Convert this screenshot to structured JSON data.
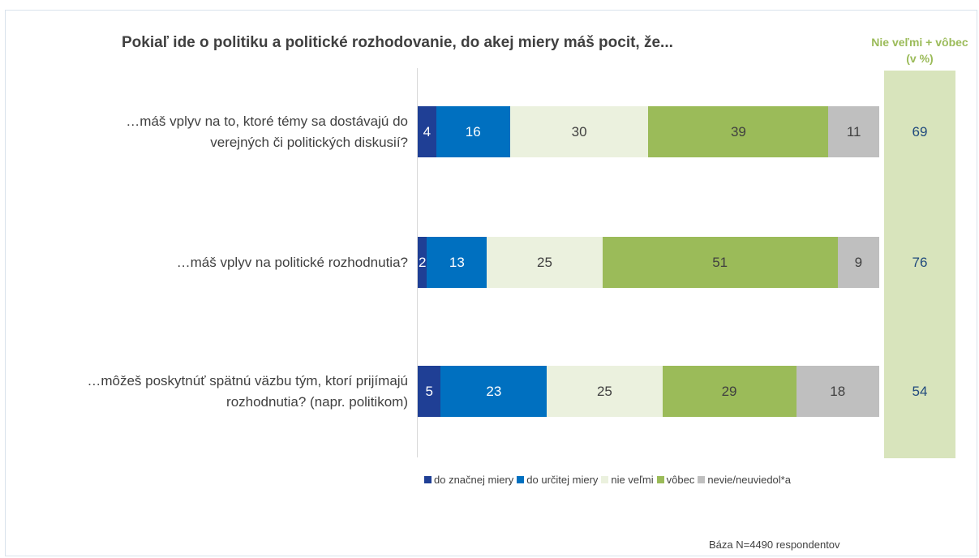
{
  "chart_data": {
    "type": "bar",
    "orientation": "horizontal",
    "stacked": true,
    "title": "Pokiaľ ide o politiku a politické rozhodovanie, do akej miery máš pocit, že...",
    "categories": [
      "…máš vplyv na to, ktoré témy sa dostávajú do verejných či politických diskusií?",
      "…máš vplyv na politické rozhodnutia?",
      "…môžeš poskytnúť spätnú väzbu tým, ktorí prijímajú rozhodnutia? (napr. politikom)"
    ],
    "series": [
      {
        "name": "do značnej miery",
        "values": [
          4,
          2,
          5
        ],
        "color": "#1f3f95",
        "text_color": "#ffffff"
      },
      {
        "name": "do určitej miery",
        "values": [
          16,
          13,
          23
        ],
        "color": "#0070c0",
        "text_color": "#ffffff"
      },
      {
        "name": "nie veľmi",
        "values": [
          30,
          25,
          25
        ],
        "color": "#ebf1de",
        "text_color": "#404040"
      },
      {
        "name": "vôbec",
        "values": [
          39,
          51,
          29
        ],
        "color": "#9bbb59",
        "text_color": "#404040"
      },
      {
        "name": "nevie/neuviedol*a",
        "values": [
          11,
          9,
          18
        ],
        "color": "#bfbfbf",
        "text_color": "#404040"
      }
    ],
    "xlim": [
      0,
      100
    ],
    "legend_position": "bottom",
    "side_column": {
      "title": "Nie veľmi + vôbec (v %)",
      "values": [
        69,
        76,
        54
      ],
      "color": "#d8e4bc"
    }
  },
  "footnote": "Báza N=4490 respondentov"
}
